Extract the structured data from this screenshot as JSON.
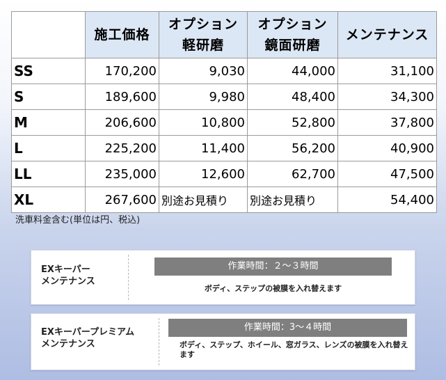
{
  "table": {
    "headers": [
      "",
      "施工価格",
      "オプション\n軽研磨",
      "オプション\n鏡面研磨",
      "メンテナンス"
    ],
    "rows": [
      {
        "size": "SS",
        "price": "170,200",
        "light": "9,030",
        "mirror": "44,000",
        "maintenance": "31,100"
      },
      {
        "size": "S",
        "price": "189,600",
        "light": "9,980",
        "mirror": "48,400",
        "maintenance": "34,300"
      },
      {
        "size": "M",
        "price": "206,600",
        "light": "10,800",
        "mirror": "52,800",
        "maintenance": "37,800"
      },
      {
        "size": "L",
        "price": "225,200",
        "light": "11,400",
        "mirror": "56,200",
        "maintenance": "40,900"
      },
      {
        "size": "LL",
        "price": "235,000",
        "light": "12,600",
        "mirror": "62,700",
        "maintenance": "47,500"
      },
      {
        "size": "XL",
        "price": "267,600",
        "light": "別途お見積り",
        "mirror": "別途お見積り",
        "maintenance": "54,400"
      }
    ]
  },
  "note": "洗車料金含む(単位は円、税込)",
  "cards": [
    {
      "name": "EXキーパー\nメンテナンス",
      "time": "作業時間：２～３時間",
      "description": "ボディ、ステップの被膜を入れ替えます"
    },
    {
      "name": "EXキーパープレミアム\nメンテナンス",
      "time": "作業時間：3～４時間",
      "description": "ボディ、ステップ、ホイール、窓ガラス、レンズの被膜を入れ替えます"
    }
  ],
  "colors": {
    "header_bg": "#dce7f5",
    "bar_bg": "#7f7f7f"
  }
}
